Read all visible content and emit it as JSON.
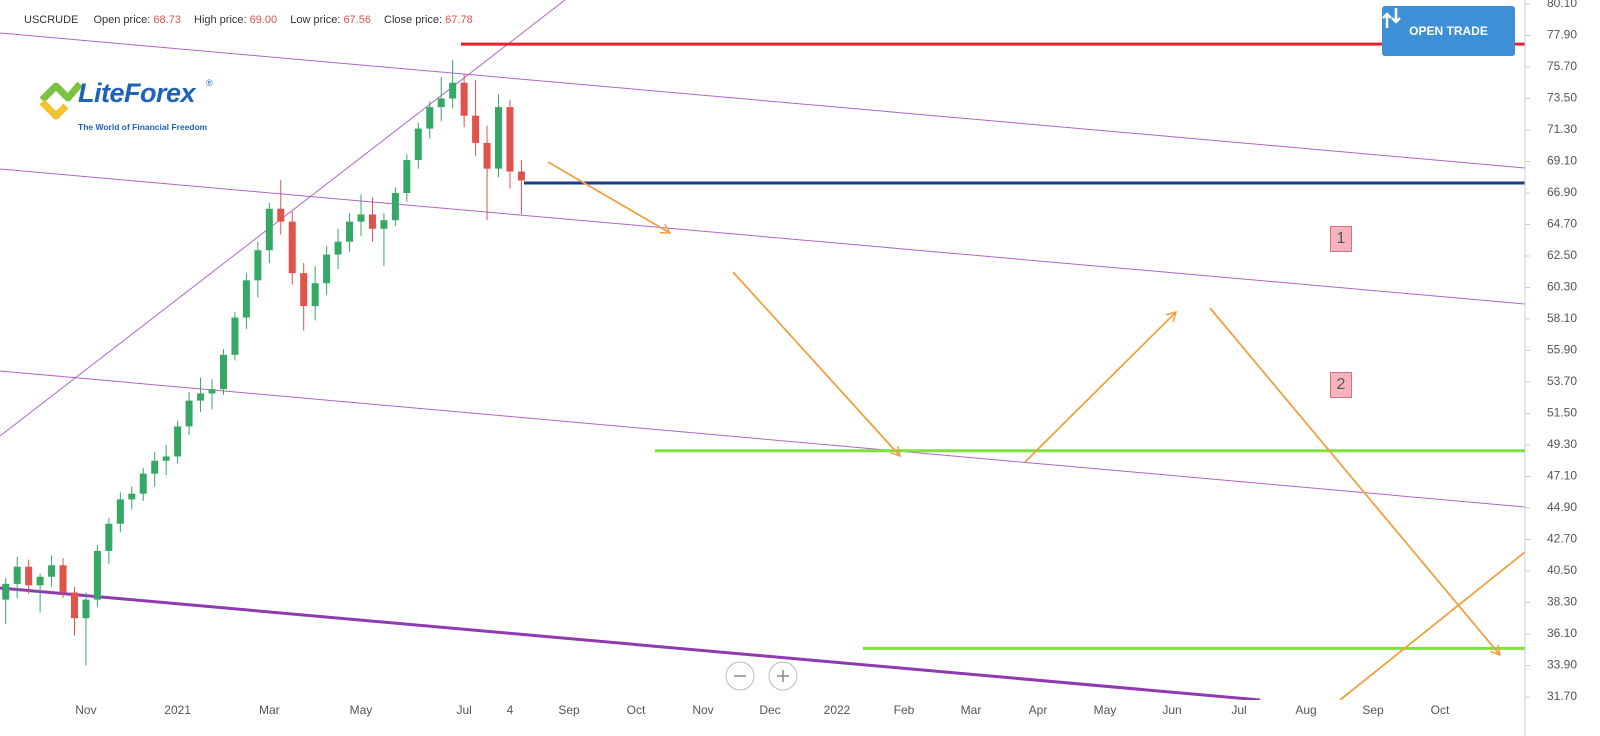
{
  "chart_data": {
    "type": "candlestick",
    "symbol": "USCRUDE",
    "quote": [
      {
        "label": "Open price:",
        "value": "68.73"
      },
      {
        "label": "High price:",
        "value": "69.00"
      },
      {
        "label": "Low price:",
        "value": "67.56"
      },
      {
        "label": "Close price:",
        "value": "67.78"
      }
    ],
    "button": "OPEN TRADE",
    "logo": {
      "name": "LiteForex",
      "mark": "®",
      "tagline": "The World of Financial Freedom"
    },
    "zone_labels": [
      "1",
      "2"
    ],
    "categories": [
      null,
      null,
      null,
      null,
      null,
      null,
      null,
      "Nov",
      null,
      null,
      null,
      null,
      null,
      null,
      null,
      "2021",
      null,
      null,
      null,
      null,
      null,
      null,
      null,
      "Mar",
      null,
      null,
      null,
      null,
      null,
      null,
      null,
      "May",
      null,
      null,
      null,
      null,
      null,
      null,
      null,
      null,
      "Jul",
      null,
      null,
      null,
      "4",
      null,
      "Sep",
      "Oct",
      "Nov",
      "Dec",
      "2022",
      "Feb",
      "Mar",
      "Apr",
      "May",
      "Jun",
      "Jul",
      "Aug",
      "Sep",
      "Oct"
    ],
    "series": {
      "open": [
        38.5,
        39.6,
        40.8,
        39.5,
        40.1,
        40.9,
        39.0,
        37.2,
        38.5,
        41.9,
        43.8,
        45.5,
        45.9,
        47.3,
        48.2,
        48.5,
        50.6,
        52.4,
        52.9,
        53.2,
        55.6,
        58.2,
        60.8,
        62.9,
        65.8,
        64.9,
        61.3,
        59.0,
        60.6,
        62.6,
        63.5,
        64.9,
        65.4,
        64.4,
        65.0,
        66.9,
        69.2,
        71.4,
        72.9,
        73.5,
        74.6,
        72.3,
        70.4,
        68.6,
        72.9,
        68.4,
        null,
        null,
        null,
        null,
        null,
        null,
        null,
        null,
        null,
        null,
        null,
        null,
        null,
        null
      ],
      "high": [
        40.0,
        41.5,
        41.3,
        40.3,
        41.6,
        41.4,
        39.4,
        39.0,
        42.3,
        44.2,
        46.0,
        46.4,
        47.7,
        48.8,
        49.3,
        51.0,
        53.0,
        54.0,
        53.9,
        56.0,
        58.6,
        61.3,
        63.5,
        66.2,
        67.8,
        65.6,
        62.0,
        61.8,
        63.2,
        64.4,
        65.5,
        66.8,
        66.6,
        65.5,
        67.3,
        69.6,
        71.8,
        73.3,
        75.0,
        76.2,
        75.2,
        74.8,
        71.6,
        73.8,
        73.4,
        69.2,
        null,
        null,
        null,
        null,
        null,
        null,
        null,
        null,
        null,
        null,
        null,
        null,
        null,
        null
      ],
      "low": [
        36.8,
        38.6,
        38.9,
        37.6,
        39.4,
        38.6,
        36.0,
        33.9,
        38.0,
        41.0,
        43.2,
        44.8,
        45.4,
        46.4,
        47.2,
        48.0,
        50.0,
        51.6,
        51.8,
        52.8,
        55.2,
        57.4,
        59.6,
        62.0,
        64.0,
        60.5,
        57.3,
        58.0,
        59.8,
        61.6,
        62.8,
        63.9,
        63.5,
        61.8,
        64.6,
        66.3,
        68.6,
        70.7,
        71.9,
        72.8,
        71.5,
        69.5,
        65.0,
        68.0,
        67.2,
        65.4,
        null,
        null,
        null,
        null,
        null,
        null,
        null,
        null,
        null,
        null,
        null,
        null,
        null,
        null
      ],
      "close": [
        39.6,
        40.8,
        39.5,
        40.1,
        40.9,
        39.0,
        37.2,
        38.5,
        41.9,
        43.8,
        45.5,
        45.9,
        47.3,
        48.2,
        48.5,
        50.6,
        52.4,
        52.9,
        53.2,
        55.6,
        58.2,
        60.8,
        62.9,
        65.8,
        64.9,
        61.3,
        59.0,
        60.6,
        62.6,
        63.5,
        64.9,
        65.4,
        64.4,
        65.0,
        66.9,
        69.2,
        71.4,
        72.9,
        73.5,
        74.6,
        72.3,
        70.4,
        68.6,
        72.9,
        68.4,
        67.78,
        null,
        null,
        null,
        null,
        null,
        null,
        null,
        null,
        null,
        null,
        null,
        null,
        null,
        null
      ]
    },
    "up_color": "#35a866",
    "down_color": "#e0524a",
    "levels": [
      {
        "value": 77.3,
        "color": "#e3222e"
      },
      {
        "value": 67.6,
        "color": "#1a3b8c"
      },
      {
        "value": 48.9,
        "color": "#7ee23a"
      },
      {
        "value": 35.1,
        "color": "#7ee23a"
      }
    ],
    "ylim": [
      31.7,
      80.1
    ],
    "yticks": [
      {
        "value": 80.1,
        "label": "80.10"
      },
      {
        "value": 77.9,
        "label": "77.90"
      },
      {
        "value": 75.7,
        "label": "75.70"
      },
      {
        "value": 73.5,
        "label": "73.50"
      },
      {
        "value": 71.3,
        "label": "71.30"
      },
      {
        "value": 69.1,
        "label": "69.10"
      },
      {
        "value": 66.9,
        "label": "66.90"
      },
      {
        "value": 64.7,
        "label": "64.70"
      },
      {
        "value": 62.5,
        "label": "62.50"
      },
      {
        "value": 60.3,
        "label": "60.30"
      },
      {
        "value": 58.1,
        "label": "58.10"
      },
      {
        "value": 55.9,
        "label": "55.90"
      },
      {
        "value": 53.7,
        "label": "53.70"
      },
      {
        "value": 51.5,
        "label": "51.50"
      },
      {
        "value": 49.3,
        "label": "49.30"
      },
      {
        "value": 47.1,
        "label": "47.10"
      },
      {
        "value": 44.9,
        "label": "44.90"
      },
      {
        "value": 42.7,
        "label": "42.70"
      },
      {
        "value": 40.5,
        "label": "40.50"
      },
      {
        "value": 38.3,
        "label": "38.30"
      },
      {
        "value": 36.1,
        "label": "36.10"
      },
      {
        "value": 33.9,
        "label": "33.90"
      },
      {
        "value": 31.7,
        "label": "31.70"
      }
    ]
  }
}
